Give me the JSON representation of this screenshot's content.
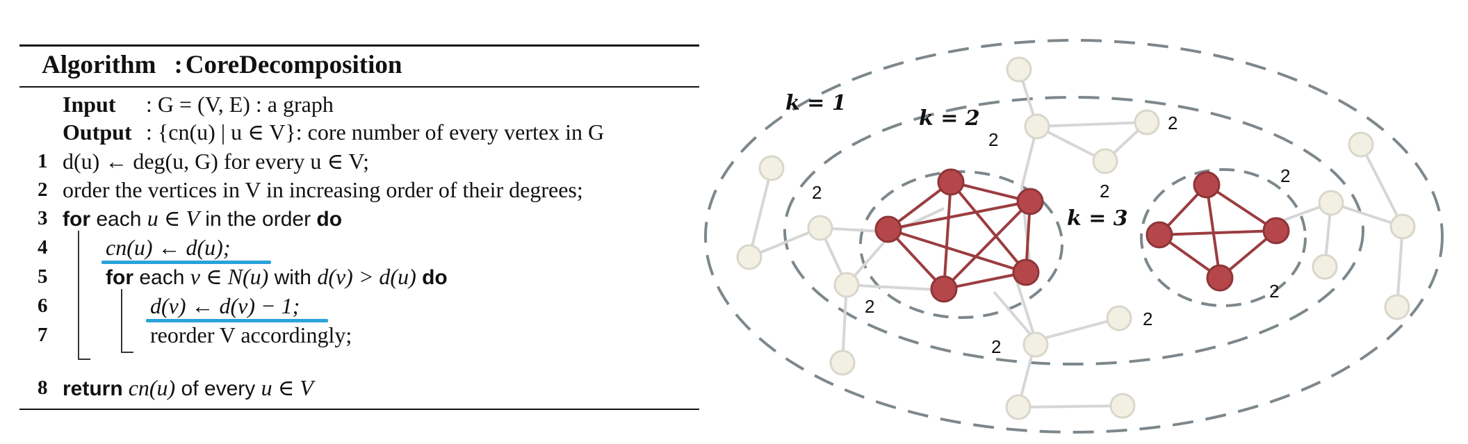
{
  "algorithm": {
    "title_word": "Algorithm",
    "title_sep": ":",
    "title_name": "CoreDecomposition",
    "input_label": "Input",
    "input_text": ":  G = (V, E) : a graph",
    "output_label": "Output",
    "output_text": ":  {cn(u) | u ∈ V}: core number of every vertex in G",
    "lines": [
      {
        "num": "1",
        "text": "d(u) ← deg(u, G) for every u ∈ V;"
      },
      {
        "num": "2",
        "text": "order the vertices in V in increasing order of their degrees;"
      },
      {
        "num": "3",
        "kw1": "for",
        "mid1": " each ",
        "math1": "u ∈ V",
        "mid2": " in the order ",
        "kw2": "do"
      },
      {
        "num": "4",
        "text": "cn(u) ← d(u);"
      },
      {
        "num": "5",
        "kw1": "for",
        "mid1": " each ",
        "math1": "v ∈ N(u)",
        "mid2": " with ",
        "math2": "d(v) > d(u)",
        "kw2": " do"
      },
      {
        "num": "6",
        "text": "d(v) ← d(v) − 1;"
      },
      {
        "num": "7",
        "text": "reorder V accordingly;"
      },
      {
        "num": "8",
        "kw1": "return",
        "math1": " cn(u)",
        "mid1": " of every ",
        "math2": "u ∈ V"
      }
    ]
  },
  "diagram": {
    "k_labels": [
      "k = 1",
      "k = 2",
      "k = 3"
    ],
    "degree_label": "2",
    "colors": {
      "core": "#b5474b",
      "core_edge": "#9b3d40",
      "outer_node": "#f2efe3",
      "outer_edge": "#d6d6d6",
      "ring": "#7d878c"
    }
  }
}
